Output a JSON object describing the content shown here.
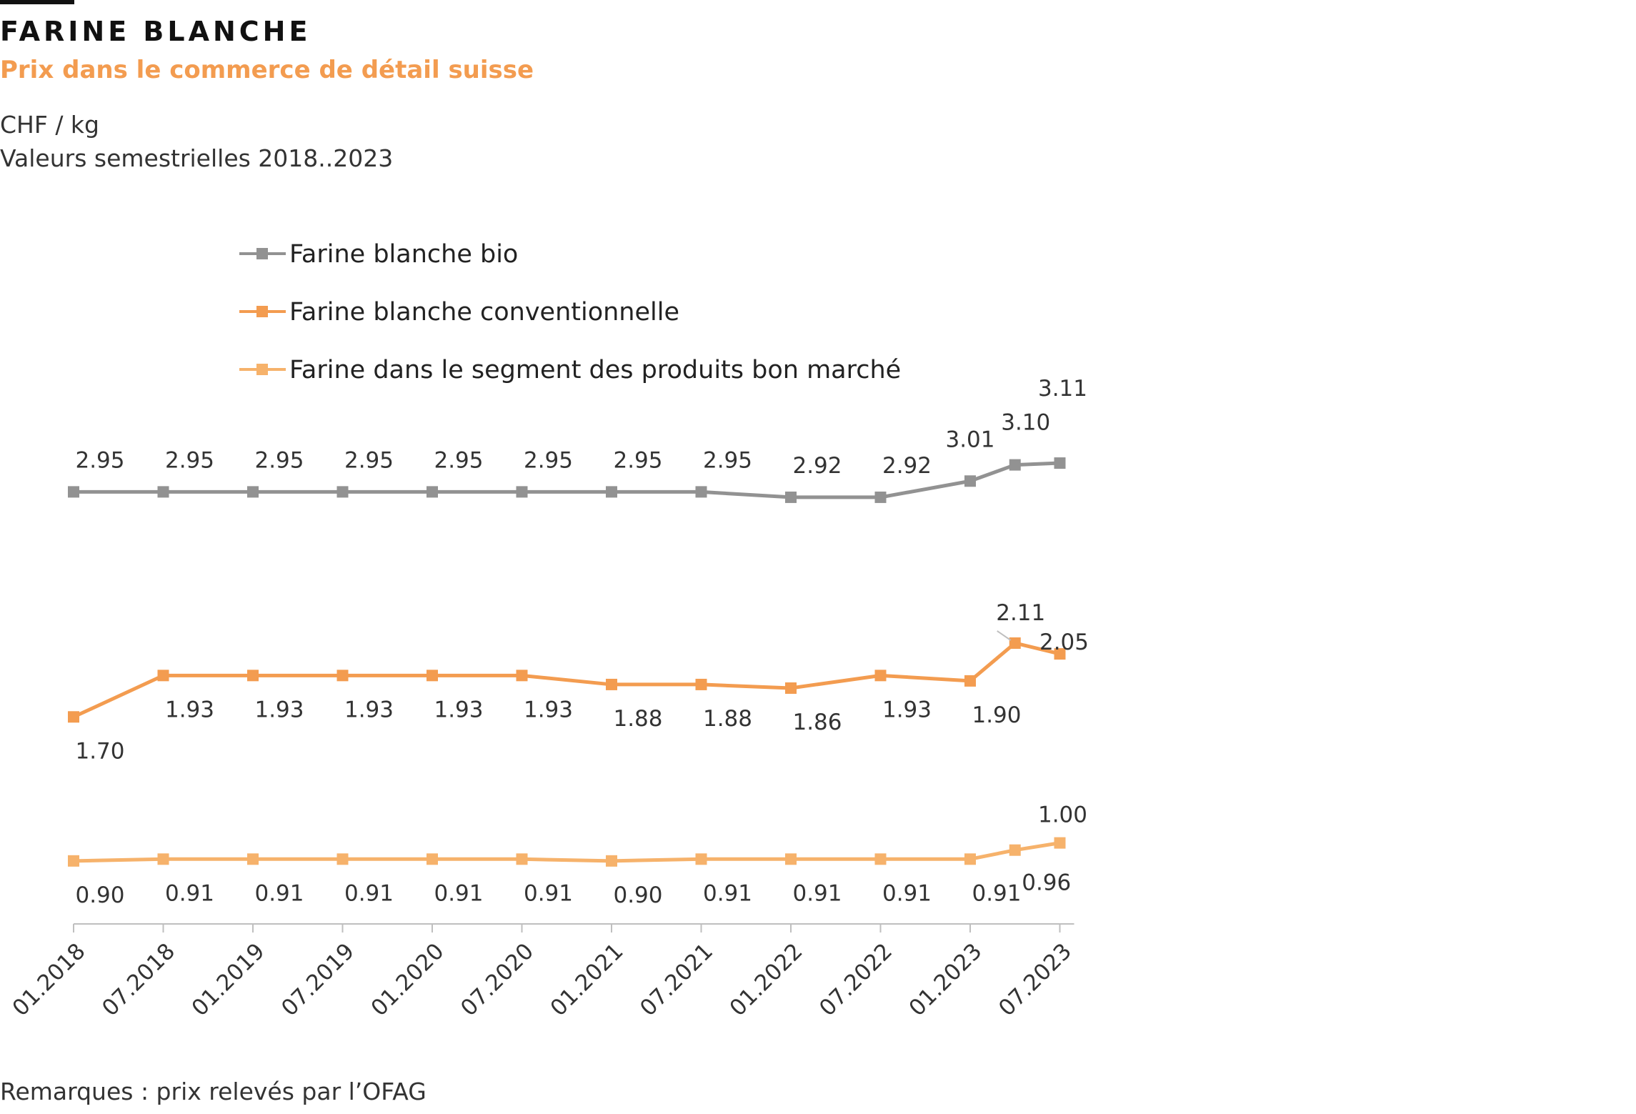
{
  "header": {
    "title": "FARINE BLANCHE",
    "subtitle": "Prix dans le commerce de détail suisse",
    "unit": "CHF / kg",
    "period": "Valeurs semestrielles 2018..2023"
  },
  "footer": {
    "note": "Remarques : prix relevés par l’OFAG"
  },
  "chart_data": {
    "type": "line",
    "legend_position": "top-left",
    "grid": false,
    "ylim": [
      0.55,
      3.4
    ],
    "categories": [
      "01.2018",
      "07.2018",
      "01.2019",
      "07.2019",
      "01.2020",
      "07.2020",
      "01.2021",
      "07.2021",
      "01.2022",
      "07.2022",
      "01.2023",
      "07.2023"
    ],
    "series": [
      {
        "name": "Farine blanche bio",
        "color": "#929292",
        "x": [
          0,
          1,
          2,
          3,
          4,
          5,
          6,
          7,
          8,
          9,
          10,
          10.5,
          11
        ],
        "values": [
          2.95,
          2.95,
          2.95,
          2.95,
          2.95,
          2.95,
          2.95,
          2.95,
          2.92,
          2.92,
          3.01,
          3.1,
          3.11
        ],
        "labels": [
          "2.95",
          "2.95",
          "2.95",
          "2.95",
          "2.95",
          "2.95",
          "2.95",
          "2.95",
          "2.92",
          "2.92",
          "3.01",
          "3.10",
          "3.11"
        ]
      },
      {
        "name": "Farine blanche conventionnelle",
        "color": "#f39c50",
        "x": [
          0,
          1,
          2,
          3,
          4,
          5,
          6,
          7,
          8,
          9,
          10,
          10.5,
          11
        ],
        "values": [
          1.7,
          1.93,
          1.93,
          1.93,
          1.93,
          1.93,
          1.88,
          1.88,
          1.86,
          1.93,
          1.9,
          2.11,
          2.05
        ],
        "labels": [
          "1.70",
          "1.93",
          "1.93",
          "1.93",
          "1.93",
          "1.93",
          "1.88",
          "1.88",
          "1.86",
          "1.93",
          "1.90",
          "2.11",
          "2.05"
        ]
      },
      {
        "name": "Farine dans le segment des produits bon marché",
        "color": "#f6b26b",
        "x": [
          0,
          1,
          2,
          3,
          4,
          5,
          6,
          7,
          8,
          9,
          10,
          10.5,
          11
        ],
        "values": [
          0.9,
          0.91,
          0.91,
          0.91,
          0.91,
          0.91,
          0.9,
          0.91,
          0.91,
          0.91,
          0.91,
          0.96,
          1.0
        ],
        "labels": [
          "0.90",
          "0.91",
          "0.91",
          "0.91",
          "0.91",
          "0.91",
          "0.90",
          "0.91",
          "0.91",
          "0.91",
          "0.91",
          "0.96",
          "1.00"
        ]
      }
    ]
  }
}
